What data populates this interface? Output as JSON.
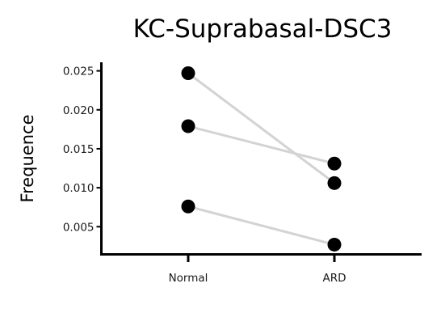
{
  "chart_data": {
    "type": "line",
    "title": "KC-Suprabasal-DSC3",
    "xlabel": "",
    "ylabel": "Frequence",
    "categories": [
      "Normal",
      "ARD"
    ],
    "series": [
      {
        "values": [
          0.0247,
          0.0106
        ]
      },
      {
        "values": [
          0.0179,
          0.0131
        ]
      },
      {
        "values": [
          0.0076,
          0.0027
        ]
      }
    ],
    "yticks": [
      0.005,
      0.01,
      0.015,
      0.02,
      0.025
    ],
    "ytick_labels": [
      "0.005",
      "0.010",
      "0.015",
      "0.020",
      "0.025"
    ],
    "ylim": [
      0.0015,
      0.0261
    ],
    "grid": false,
    "legend": "none",
    "colors": {
      "point": "#000000",
      "line": "#d3d3d3",
      "axis": "#000000"
    }
  }
}
